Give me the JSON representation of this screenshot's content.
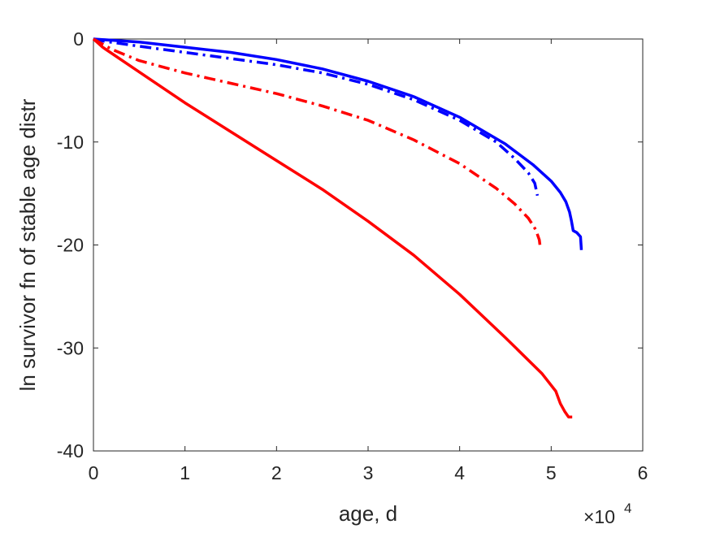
{
  "chart_data": {
    "type": "line",
    "title": "",
    "xlabel": "age, d",
    "ylabel": "ln survivor fn of stable age distr",
    "xlim": [
      0,
      60000
    ],
    "ylim": [
      -40,
      0
    ],
    "x_multiplier_label": {
      "base": "×10",
      "exponent": "4"
    },
    "x_ticks": [
      0,
      10000,
      20000,
      30000,
      40000,
      50000,
      60000
    ],
    "x_tick_labels": [
      "0",
      "1",
      "2",
      "3",
      "4",
      "5",
      "6"
    ],
    "y_ticks": [
      0,
      -10,
      -20,
      -30,
      -40
    ],
    "y_tick_labels": [
      "0",
      "-10",
      "-20",
      "-30",
      "-40"
    ],
    "grid": false,
    "legend": "none",
    "series": [
      {
        "color": "#0000ff",
        "style": "solid",
        "points": [
          [
            0,
            0
          ],
          [
            5000,
            -0.3
          ],
          [
            10000,
            -0.8
          ],
          [
            15000,
            -1.3
          ],
          [
            20000,
            -2.0
          ],
          [
            25000,
            -2.9
          ],
          [
            30000,
            -4.1
          ],
          [
            35000,
            -5.6
          ],
          [
            40000,
            -7.6
          ],
          [
            45000,
            -10.2
          ],
          [
            48000,
            -12.2
          ],
          [
            50000,
            -13.8
          ],
          [
            51000,
            -14.9
          ],
          [
            51600,
            -15.8
          ],
          [
            52000,
            -16.8
          ],
          [
            52200,
            -17.6
          ],
          [
            52400,
            -18.6
          ],
          [
            52800,
            -18.8
          ],
          [
            53200,
            -19.2
          ],
          [
            53300,
            -20.5
          ]
        ]
      },
      {
        "color": "#0000ff",
        "style": "dashdot",
        "points": [
          [
            0,
            0
          ],
          [
            1000,
            -0.2
          ],
          [
            5000,
            -0.7
          ],
          [
            10000,
            -1.3
          ],
          [
            15000,
            -1.9
          ],
          [
            20000,
            -2.5
          ],
          [
            25000,
            -3.3
          ],
          [
            30000,
            -4.4
          ],
          [
            35000,
            -5.9
          ],
          [
            40000,
            -7.9
          ],
          [
            44000,
            -10.0
          ],
          [
            46000,
            -11.6
          ],
          [
            47500,
            -13.0
          ],
          [
            48200,
            -14.0
          ],
          [
            48500,
            -15.2
          ]
        ]
      },
      {
        "color": "#ff0000",
        "style": "dashdot",
        "points": [
          [
            0,
            0
          ],
          [
            2000,
            -1.0
          ],
          [
            5000,
            -2.1
          ],
          [
            10000,
            -3.3
          ],
          [
            15000,
            -4.3
          ],
          [
            20000,
            -5.3
          ],
          [
            25000,
            -6.5
          ],
          [
            30000,
            -7.9
          ],
          [
            35000,
            -9.8
          ],
          [
            40000,
            -12.1
          ],
          [
            44000,
            -14.5
          ],
          [
            46000,
            -16.0
          ],
          [
            47500,
            -17.4
          ],
          [
            48300,
            -18.5
          ],
          [
            48700,
            -19.5
          ],
          [
            48800,
            -20.2
          ]
        ]
      },
      {
        "color": "#ff0000",
        "style": "solid",
        "points": [
          [
            0,
            0
          ],
          [
            1000,
            -0.8
          ],
          [
            5000,
            -3.2
          ],
          [
            10000,
            -6.2
          ],
          [
            15000,
            -9.0
          ],
          [
            20000,
            -11.8
          ],
          [
            25000,
            -14.6
          ],
          [
            30000,
            -17.7
          ],
          [
            35000,
            -21.0
          ],
          [
            40000,
            -24.8
          ],
          [
            45000,
            -29.0
          ],
          [
            49000,
            -32.5
          ],
          [
            50500,
            -34.2
          ],
          [
            51000,
            -35.4
          ],
          [
            51500,
            -36.2
          ],
          [
            51900,
            -36.7
          ],
          [
            52300,
            -36.7
          ]
        ]
      }
    ]
  }
}
